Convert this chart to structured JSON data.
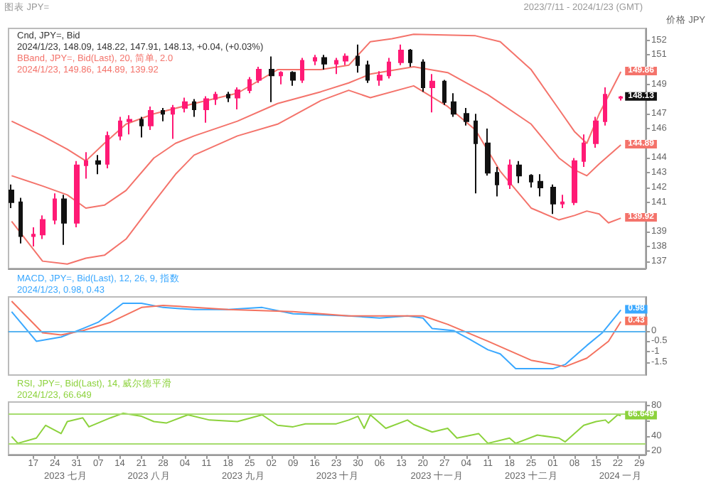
{
  "chart_data": [
    {
      "type": "candlestick",
      "title": "Cnd, JPY=, Bid",
      "subtitle": "2024/1/23, 148.09, 148.22, 147.91, 148.13, +0.04, (+0.03%)",
      "ylabel": "价格 JPY",
      "annotations": [
        "BBand, JPY=, Bid(Last), 20, 简单, 2.0",
        "2024/1/23, 149.86, 144.89, 139.92",
        "图表 JPY=",
        "2023/7/11 - 2024/1/23 (GMT)",
        {
          "text": "149.86",
          "x": "2024-01-23",
          "y": 149.86
        },
        {
          "text": "148.13",
          "x": "2024-01-23",
          "y": 148.13
        },
        {
          "text": "144.89",
          "x": "2024-01-23",
          "y": 144.89
        },
        {
          "text": "139.92",
          "x": "2024-01-23",
          "y": 139.92
        }
      ],
      "x": [
        "2023-07-10",
        "2023-07-13",
        "2023-07-17",
        "2023-07-20",
        "2023-07-24",
        "2023-07-27",
        "2023-07-31",
        "2023-08-03",
        "2023-08-07",
        "2023-08-10",
        "2023-08-14",
        "2023-08-17",
        "2023-08-21",
        "2023-08-24",
        "2023-08-28",
        "2023-08-31",
        "2023-09-04",
        "2023-09-07",
        "2023-09-11",
        "2023-09-14",
        "2023-09-18",
        "2023-09-21",
        "2023-09-25",
        "2023-09-28",
        "2023-10-02",
        "2023-10-05",
        "2023-10-09",
        "2023-10-12",
        "2023-10-16",
        "2023-10-19",
        "2023-10-23",
        "2023-10-26",
        "2023-10-30",
        "2023-11-02",
        "2023-11-06",
        "2023-11-09",
        "2023-11-13",
        "2023-11-16",
        "2023-11-20",
        "2023-11-23",
        "2023-11-27",
        "2023-11-30",
        "2023-12-04",
        "2023-12-07",
        "2023-12-11",
        "2023-12-14",
        "2023-12-18",
        "2023-12-21",
        "2023-12-25",
        "2023-12-28",
        "2024-01-01",
        "2024-01-04",
        "2024-01-08",
        "2024-01-11",
        "2024-01-15",
        "2024-01-18",
        "2024-01-23"
      ],
      "ohlc": [
        [
          141.8,
          142.2,
          140.6,
          141.0
        ],
        [
          141.0,
          141.3,
          138.2,
          138.7
        ],
        [
          138.7,
          139.3,
          138.0,
          138.8
        ],
        [
          138.8,
          140.1,
          138.5,
          139.8
        ],
        [
          139.8,
          141.6,
          139.5,
          141.2
        ],
        [
          141.2,
          141.5,
          138.1,
          139.6
        ],
        [
          139.6,
          143.8,
          139.3,
          143.5
        ],
        [
          143.5,
          144.4,
          142.6,
          143.8
        ],
        [
          143.8,
          144.2,
          142.9,
          143.6
        ],
        [
          143.6,
          145.8,
          143.3,
          145.5
        ],
        [
          145.5,
          146.8,
          145.2,
          146.5
        ],
        [
          146.5,
          146.9,
          145.6,
          146.6
        ],
        [
          146.6,
          146.8,
          145.4,
          146.2
        ],
        [
          146.2,
          147.5,
          145.9,
          147.2
        ],
        [
          147.2,
          147.4,
          146.5,
          147.0
        ],
        [
          147.0,
          147.6,
          145.3,
          147.4
        ],
        [
          147.4,
          148.1,
          147.1,
          147.8
        ],
        [
          147.8,
          148.0,
          146.8,
          147.3
        ],
        [
          147.3,
          148.2,
          146.4,
          148.0
        ],
        [
          148.0,
          148.5,
          147.6,
          148.3
        ],
        [
          148.3,
          148.5,
          147.8,
          148.1
        ],
        [
          148.1,
          148.8,
          147.3,
          148.6
        ],
        [
          148.6,
          149.5,
          148.4,
          149.3
        ],
        [
          149.3,
          150.2,
          149.1,
          150.0
        ],
        [
          150.0,
          150.9,
          147.8,
          149.6
        ],
        [
          149.6,
          149.9,
          149.0,
          149.8
        ],
        [
          149.8,
          149.9,
          148.9,
          149.3
        ],
        [
          149.3,
          150.8,
          149.1,
          150.6
        ],
        [
          150.6,
          151.0,
          150.3,
          150.8
        ],
        [
          150.8,
          151.0,
          150.0,
          150.4
        ],
        [
          150.4,
          150.8,
          149.7,
          150.6
        ],
        [
          150.6,
          151.1,
          150.3,
          150.9
        ],
        [
          150.9,
          151.7,
          149.8,
          150.3
        ],
        [
          150.3,
          150.6,
          149.1,
          149.3
        ],
        [
          149.3,
          149.9,
          148.9,
          149.6
        ],
        [
          149.6,
          150.8,
          149.4,
          150.5
        ],
        [
          150.5,
          151.7,
          150.3,
          151.3
        ],
        [
          151.3,
          151.4,
          150.2,
          150.5
        ],
        [
          150.5,
          150.7,
          148.5,
          148.8
        ],
        [
          148.8,
          149.7,
          147.1,
          149.2
        ],
        [
          149.2,
          149.3,
          147.6,
          147.8
        ],
        [
          147.8,
          148.4,
          146.8,
          147.0
        ],
        [
          147.0,
          147.4,
          146.2,
          146.5
        ],
        [
          146.5,
          147.0,
          141.6,
          145.0
        ],
        [
          145.0,
          146.0,
          142.8,
          143.0
        ],
        [
          143.0,
          143.4,
          141.4,
          142.2
        ],
        [
          142.2,
          143.9,
          141.9,
          143.5
        ],
        [
          143.5,
          143.8,
          142.3,
          142.8
        ],
        [
          142.8,
          142.9,
          142.0,
          142.4
        ],
        [
          142.4,
          142.9,
          141.4,
          142.0
        ],
        [
          142.0,
          142.2,
          140.2,
          140.9
        ],
        [
          140.9,
          141.5,
          140.6,
          141.0
        ],
        [
          141.0,
          144.0,
          140.8,
          143.8
        ],
        [
          143.8,
          145.6,
          143.4,
          145.0
        ],
        [
          145.0,
          146.8,
          144.7,
          146.5
        ],
        [
          146.5,
          148.8,
          146.2,
          148.3
        ],
        [
          148.09,
          148.22,
          147.91,
          148.13
        ]
      ],
      "series": [
        {
          "type": "line",
          "color": "#f4736b",
          "x": [
            "2023-07-10",
            "2023-07-20",
            "2023-07-28",
            "2023-08-03",
            "2023-08-09",
            "2023-08-16",
            "2023-08-25",
            "2023-09-07",
            "2023-09-21",
            "2023-10-04",
            "2023-10-18",
            "2023-10-27",
            "2023-11-03",
            "2023-11-10",
            "2023-11-17",
            "2023-12-07",
            "2023-12-15",
            "2023-12-25",
            "2024-01-03",
            "2024-01-08",
            "2024-01-12",
            "2024-01-16",
            "2024-01-23"
          ],
          "values": [
            146.5,
            145.5,
            144.6,
            143.8,
            145.0,
            146.3,
            147.0,
            147.7,
            148.4,
            150.0,
            150.0,
            150.3,
            151.9,
            152.1,
            152.4,
            152.3,
            151.9,
            150.0,
            147.3,
            145.8,
            145.0,
            147.0,
            149.86
          ]
        },
        {
          "type": "line",
          "color": "#f4736b",
          "x": [
            "2023-07-10",
            "2023-07-20",
            "2023-07-28",
            "2023-08-03",
            "2023-08-09",
            "2023-08-16",
            "2023-08-25",
            "2023-09-01",
            "2023-09-07",
            "2023-09-21",
            "2023-10-04",
            "2023-10-18",
            "2023-10-27",
            "2023-11-03",
            "2023-11-17",
            "2023-11-28",
            "2023-12-11",
            "2023-12-25",
            "2024-01-03",
            "2024-01-08",
            "2024-01-12",
            "2024-01-16",
            "2024-01-23"
          ],
          "values": [
            142.8,
            142.1,
            141.5,
            140.6,
            140.8,
            141.8,
            144.0,
            145.0,
            145.5,
            146.5,
            147.7,
            148.5,
            149.1,
            149.7,
            150.2,
            149.8,
            148.3,
            146.3,
            144.0,
            143.2,
            142.8,
            143.6,
            144.89
          ]
        },
        {
          "type": "line",
          "color": "#f4736b",
          "x": [
            "2023-07-10",
            "2023-07-20",
            "2023-07-28",
            "2023-08-03",
            "2023-08-09",
            "2023-08-16",
            "2023-08-25",
            "2023-09-01",
            "2023-09-07",
            "2023-09-21",
            "2023-10-04",
            "2023-10-18",
            "2023-10-27",
            "2023-11-03",
            "2023-11-17",
            "2023-11-28",
            "2023-12-07",
            "2023-12-15",
            "2023-12-25",
            "2024-01-03",
            "2024-01-08",
            "2024-01-12",
            "2024-01-16",
            "2024-01-19",
            "2024-01-23"
          ],
          "values": [
            139.7,
            137.0,
            136.8,
            137.2,
            137.4,
            138.5,
            141.0,
            142.9,
            144.2,
            145.5,
            146.3,
            147.9,
            148.6,
            148.1,
            148.9,
            147.5,
            145.9,
            143.1,
            140.6,
            139.8,
            140.1,
            140.4,
            140.2,
            139.6,
            139.92
          ]
        }
      ],
      "xlim": [
        "2023-07-09",
        "2024-01-31"
      ],
      "ylim": [
        136.5,
        152.8
      ],
      "yticks": [
        137,
        138,
        139,
        {
          "value": 140,
          "label": null
        },
        141,
        142,
        143,
        144,
        {
          "value": 145,
          "label": null
        },
        146,
        147,
        {
          "value": 148,
          "label": null
        },
        149,
        {
          "value": 150,
          "label": null
        },
        151,
        152
      ],
      "tick_labels": "y"
    },
    {
      "type": "line",
      "title": "MACD, JPY=, Bid(Last), 12, 26, 9, 指数",
      "subtitle": "2024/1/23, 0.98, 0.43",
      "annotations": [
        {
          "text": "0.98",
          "x": "2024-01-23",
          "y": 0.98
        },
        {
          "text": "0.43",
          "x": "2024-01-23",
          "y": 0.43
        }
      ],
      "series": [
        {
          "color": "#3aa8ff",
          "x": [
            "2023-07-10",
            "2023-07-18",
            "2023-07-26",
            "2023-08-02",
            "2023-08-07",
            "2023-08-15",
            "2023-08-21",
            "2023-08-28",
            "2023-09-07",
            "2023-09-18",
            "2023-09-29",
            "2023-10-09",
            "2023-10-27",
            "2023-11-06",
            "2023-11-15",
            "2023-11-20",
            "2023-11-23",
            "2023-11-30",
            "2023-12-05",
            "2023-12-11",
            "2023-12-15",
            "2023-12-20",
            "2023-12-25",
            "2024-01-01",
            "2024-01-05",
            "2024-01-12",
            "2024-01-17",
            "2024-01-22",
            "2024-01-23"
          ],
          "values": [
            0.9,
            -0.5,
            -0.3,
            0.1,
            0.4,
            1.3,
            1.3,
            1.1,
            1.0,
            1.0,
            1.1,
            0.8,
            0.7,
            0.6,
            0.7,
            0.6,
            0.1,
            0.0,
            -0.4,
            -0.9,
            -1.1,
            -1.8,
            -1.8,
            -1.8,
            -1.6,
            -0.7,
            -0.1,
            0.8,
            0.98
          ]
        },
        {
          "color": "#f4725f",
          "x": [
            "2023-07-10",
            "2023-07-20",
            "2023-07-26",
            "2023-08-02",
            "2023-08-11",
            "2023-08-21",
            "2023-08-28",
            "2023-09-18",
            "2023-10-09",
            "2023-10-27",
            "2023-11-20",
            "2023-11-28",
            "2023-12-11",
            "2023-12-25",
            "2024-01-05",
            "2024-01-12",
            "2024-01-19",
            "2024-01-23"
          ],
          "values": [
            1.4,
            -0.1,
            -0.2,
            0.0,
            0.4,
            1.1,
            1.2,
            1.0,
            0.9,
            0.7,
            0.7,
            0.3,
            -0.5,
            -1.4,
            -1.7,
            -1.3,
            -0.5,
            0.43
          ]
        }
      ],
      "ref_lines": [
        {
          "axis": "y",
          "value": 0,
          "color": "#5ab4f0"
        }
      ],
      "xlim": [
        "2023-07-09",
        "2024-01-31"
      ],
      "ylim": [
        -2.1,
        1.6
      ],
      "yticks": [
        0,
        -0.5,
        -1,
        -1.5
      ],
      "tick_labels": "y"
    },
    {
      "type": "line",
      "title": "RSI, JPY=, Bid(Last), 14, 威尔德平滑",
      "subtitle": "2024/1/23, 66.649",
      "annotations": [
        {
          "text": "66.649",
          "x": "2024-01-23",
          "y": 66.649
        },
        "2023 七月",
        "2023 八月",
        "2023 九月",
        "2023 十月",
        "2023 十一月",
        "2023 十二月",
        "2024 一月"
      ],
      "series": [
        {
          "color": "#8cd23c",
          "x": [
            "2023-07-10",
            "2023-07-12",
            "2023-07-18",
            "2023-07-21",
            "2023-07-26",
            "2023-07-28",
            "2023-08-02",
            "2023-08-04",
            "2023-08-11",
            "2023-08-15",
            "2023-08-21",
            "2023-08-25",
            "2023-08-29",
            "2023-09-05",
            "2023-09-12",
            "2023-09-21",
            "2023-09-29",
            "2023-10-04",
            "2023-10-09",
            "2023-10-13",
            "2023-10-23",
            "2023-10-27",
            "2023-10-30",
            "2023-11-01",
            "2023-11-03",
            "2023-11-08",
            "2023-11-15",
            "2023-11-17",
            "2023-11-23",
            "2023-11-28",
            "2023-12-01",
            "2023-12-08",
            "2023-12-11",
            "2023-12-18",
            "2023-12-20",
            "2023-12-27",
            "2024-01-03",
            "2024-01-05",
            "2024-01-11",
            "2024-01-15",
            "2024-01-18",
            "2024-01-19",
            "2024-01-22",
            "2024-01-23"
          ],
          "values": [
            39,
            30,
            37,
            54,
            43,
            59,
            64,
            52,
            64,
            70,
            66,
            59,
            57,
            68,
            61,
            59,
            68,
            54,
            52,
            56,
            56,
            61,
            66,
            50,
            68,
            50,
            61,
            55,
            45,
            50,
            37,
            43,
            30,
            37,
            30,
            41,
            37,
            32,
            54,
            59,
            61,
            57,
            68,
            66.649
          ]
        }
      ],
      "ref_lines": [
        {
          "axis": "y",
          "value": 70,
          "color": "#a6dc6e"
        },
        {
          "axis": "y",
          "value": 30,
          "color": "#a6dc6e"
        }
      ],
      "xlim": [
        "2023-07-09",
        "2024-01-31"
      ],
      "xticks": [
        {
          "value": "2023-07-17",
          "label": "17"
        },
        {
          "value": "2023-07-24",
          "label": "24"
        },
        {
          "value": "2023-07-31",
          "label": "31"
        },
        {
          "value": "2023-08-07",
          "label": "07"
        },
        {
          "value": "2023-08-14",
          "label": "14"
        },
        {
          "value": "2023-08-21",
          "label": "21"
        },
        {
          "value": "2023-08-28",
          "label": "28"
        },
        {
          "value": "2023-09-04",
          "label": "04"
        },
        {
          "value": "2023-09-11",
          "label": "11"
        },
        {
          "value": "2023-09-18",
          "label": "18"
        },
        {
          "value": "2023-09-25",
          "label": "25"
        },
        {
          "value": "2023-10-02",
          "label": "02"
        },
        {
          "value": "2023-10-09",
          "label": "09"
        },
        {
          "value": "2023-10-16",
          "label": "16"
        },
        {
          "value": "2023-10-23",
          "label": "23"
        },
        {
          "value": "2023-10-30",
          "label": "30"
        },
        {
          "value": "2023-11-06",
          "label": "06"
        },
        {
          "value": "2023-11-13",
          "label": "13"
        },
        {
          "value": "2023-11-20",
          "label": "20"
        },
        {
          "value": "2023-11-27",
          "label": "27"
        },
        {
          "value": "2023-12-04",
          "label": "04"
        },
        {
          "value": "2023-12-11",
          "label": "11"
        },
        {
          "value": "2023-12-18",
          "label": "18"
        },
        {
          "value": "2023-12-25",
          "label": "25"
        },
        {
          "value": "2024-01-01",
          "label": "01"
        },
        {
          "value": "2024-01-08",
          "label": "08"
        },
        {
          "value": "2024-01-15",
          "label": "15"
        },
        {
          "value": "2024-01-22",
          "label": "22"
        },
        {
          "value": "2024-01-29",
          "label": "29"
        }
      ],
      "ylim": [
        15,
        85
      ],
      "yticks": [
        20,
        40,
        {
          "value": 60,
          "label": null
        },
        80
      ]
    }
  ]
}
